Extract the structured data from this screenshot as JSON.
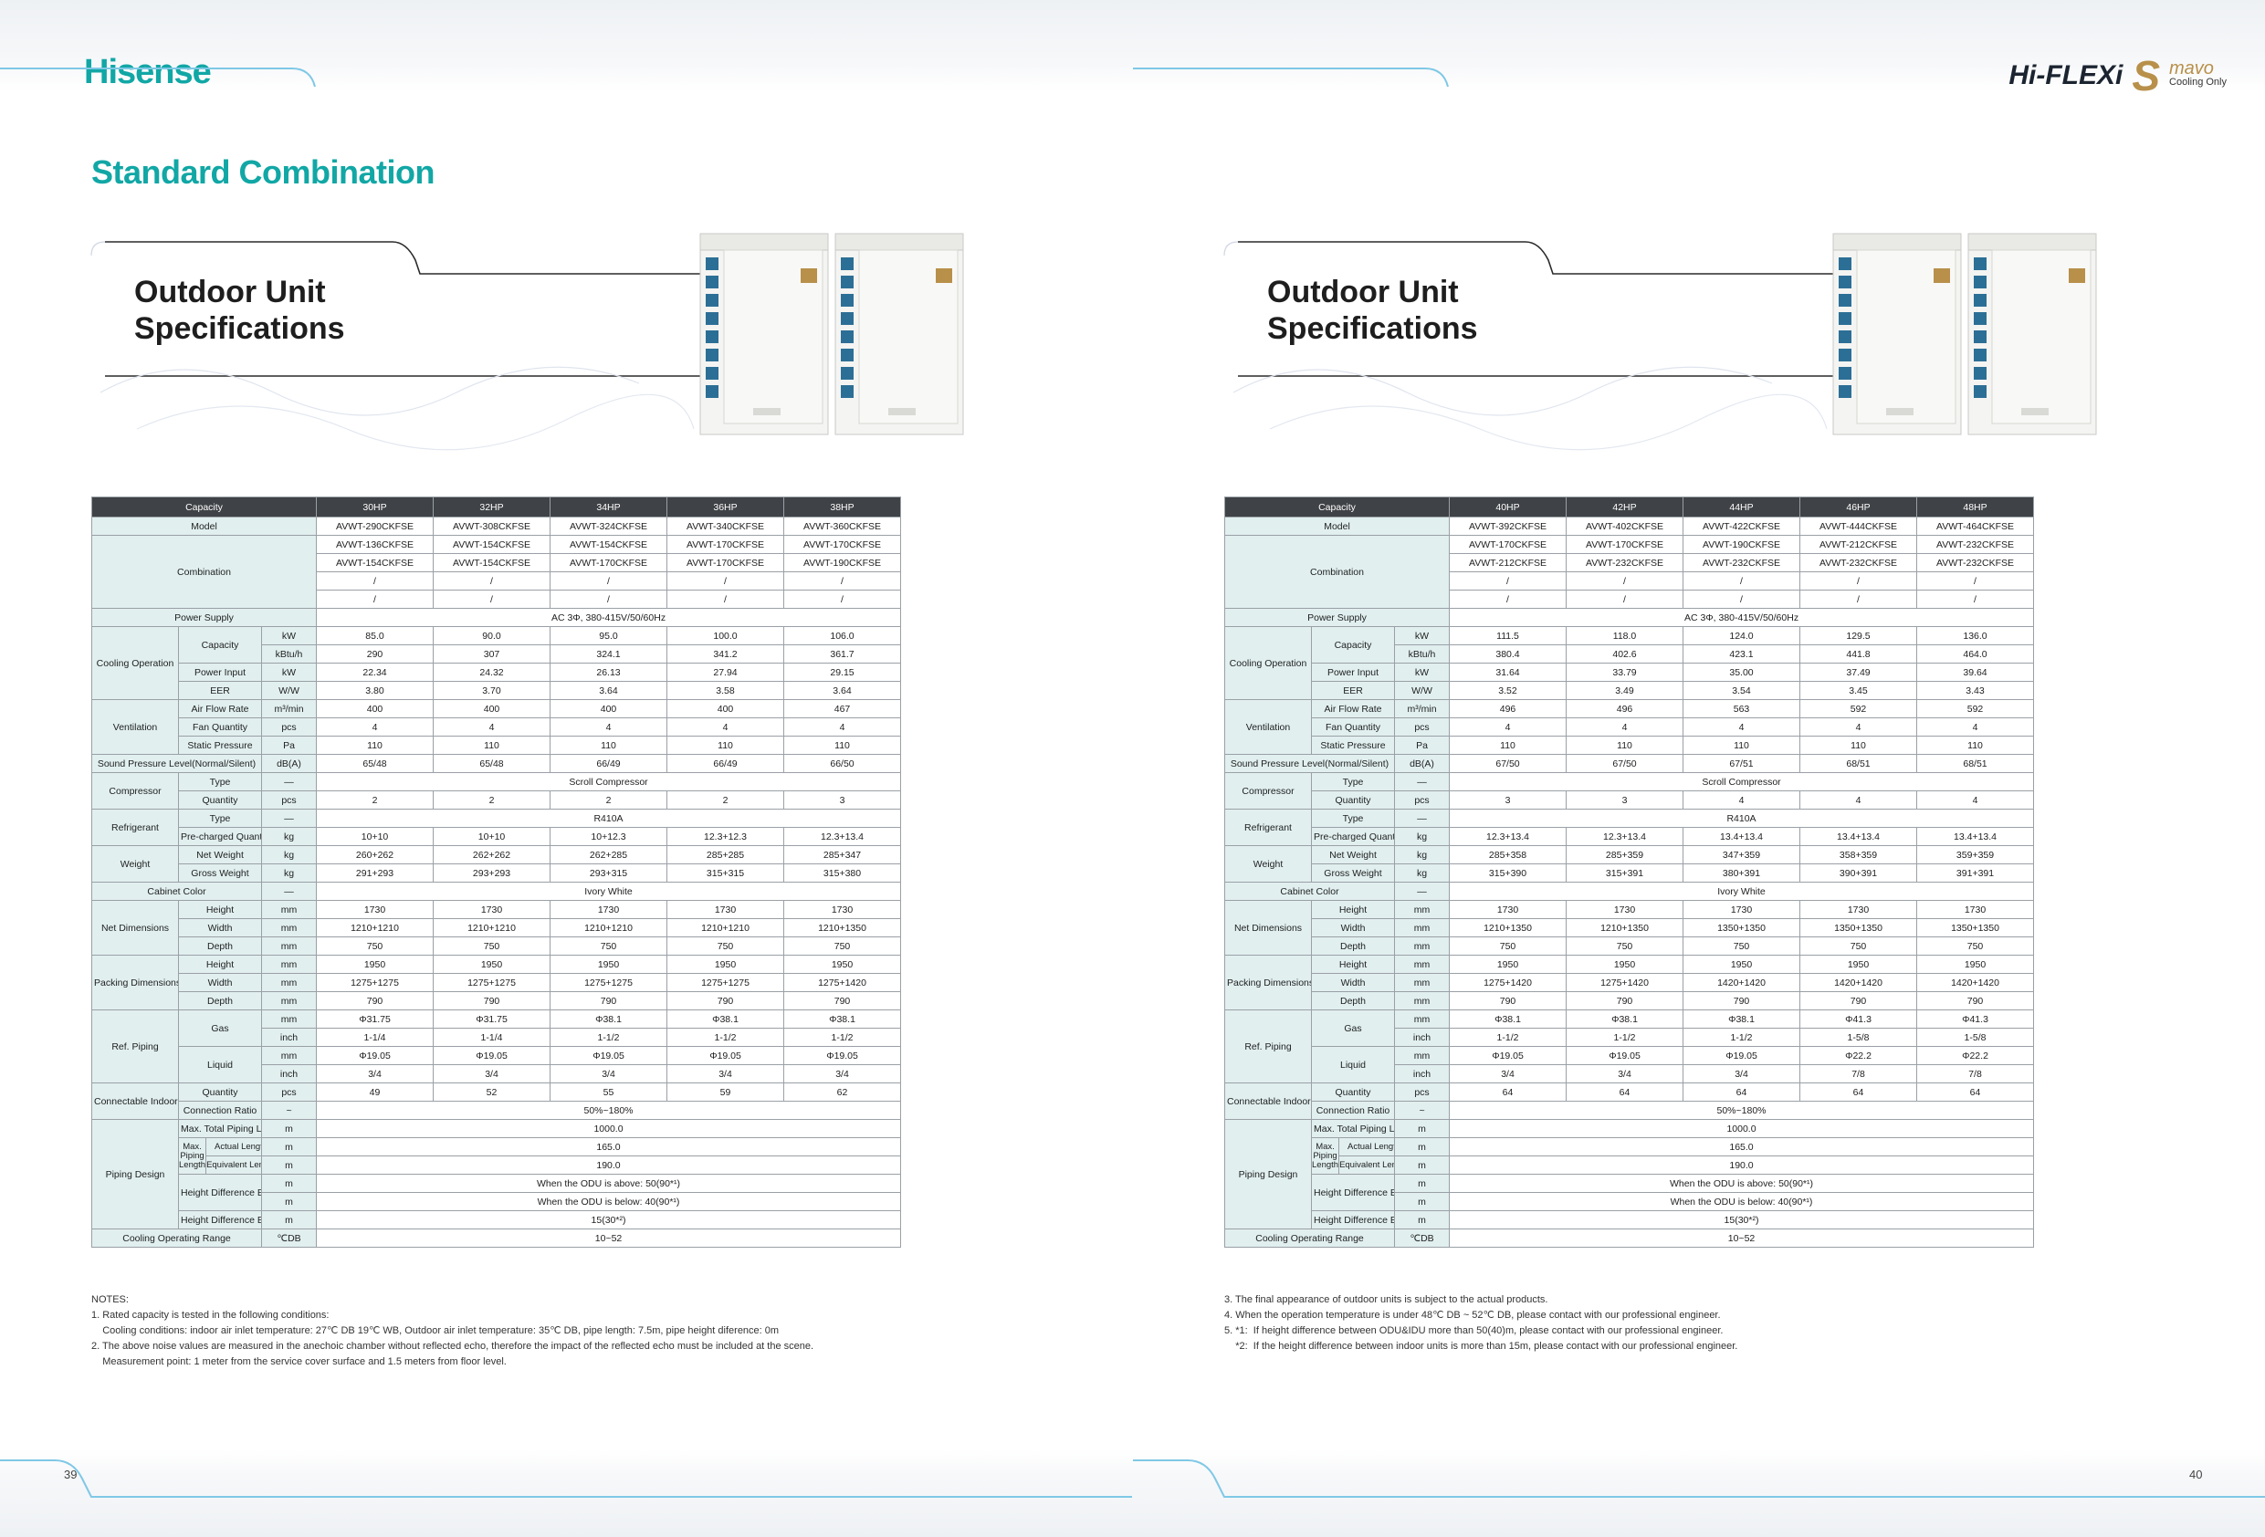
{
  "header": {
    "brand": "Hisense",
    "hiflexi": "Hi-FLEXi",
    "hiflexi_s": "S",
    "mavo": "mavo",
    "mavo_sub": "Cooling Only",
    "section_title": "Standard Combination"
  },
  "pages": [
    {
      "page_number": "39",
      "outdoor_title_1": "Outdoor Unit",
      "outdoor_title_2": "Specifications",
      "capacities": [
        "30HP",
        "32HP",
        "34HP",
        "36HP",
        "38HP"
      ],
      "notes_title": "NOTES:",
      "notes": [
        "1. Rated capacity is tested in the following conditions:",
        "    Cooling conditions: indoor air inlet temperature: 27℃ DB 19℃ WB, Outdoor air inlet temperature: 35℃ DB, pipe length: 7.5m, pipe height diference: 0m",
        "2. The above noise values are measured in the anechoic chamber without reflected echo, therefore the impact of the reflected echo must be included at the scene.",
        "    Measurement point: 1 meter from the service cover surface and 1.5 meters from floor level."
      ],
      "rows": {
        "model": [
          "AVWT-290CKFSE",
          "AVWT-308CKFSE",
          "AVWT-324CKFSE",
          "AVWT-340CKFSE",
          "AVWT-360CKFSE"
        ],
        "combo1": [
          "AVWT-136CKFSE",
          "AVWT-154CKFSE",
          "AVWT-154CKFSE",
          "AVWT-170CKFSE",
          "AVWT-170CKFSE"
        ],
        "combo2": [
          "AVWT-154CKFSE",
          "AVWT-154CKFSE",
          "AVWT-170CKFSE",
          "AVWT-170CKFSE",
          "AVWT-190CKFSE"
        ],
        "combo3": [
          "/",
          "/",
          "/",
          "/",
          "/"
        ],
        "combo4": [
          "/",
          "/",
          "/",
          "/",
          "/"
        ],
        "power_supply": "AC 3Φ, 380-415V/50/60Hz",
        "cap_kw": [
          "85.0",
          "90.0",
          "95.0",
          "100.0",
          "106.0"
        ],
        "cap_kbtu": [
          "290",
          "307",
          "324.1",
          "341.2",
          "361.7"
        ],
        "power_input": [
          "22.34",
          "24.32",
          "26.13",
          "27.94",
          "29.15"
        ],
        "eer": [
          "3.80",
          "3.70",
          "3.64",
          "3.58",
          "3.64"
        ],
        "air_flow": [
          "400",
          "400",
          "400",
          "400",
          "467"
        ],
        "fan_qty": [
          "4",
          "4",
          "4",
          "4",
          "4"
        ],
        "static_pressure": [
          "110",
          "110",
          "110",
          "110",
          "110"
        ],
        "sound": [
          "65/48",
          "65/48",
          "66/49",
          "66/49",
          "66/50"
        ],
        "compressor_type": "Scroll Compressor",
        "compressor_qty": [
          "2",
          "2",
          "2",
          "2",
          "3"
        ],
        "refrigerant_type": "R410A",
        "precharged": [
          "10+10",
          "10+10",
          "10+12.3",
          "12.3+12.3",
          "12.3+13.4"
        ],
        "net_weight": [
          "260+262",
          "262+262",
          "262+285",
          "285+285",
          "285+347"
        ],
        "gross_weight": [
          "291+293",
          "293+293",
          "293+315",
          "315+315",
          "315+380"
        ],
        "cabinet_color": "Ivory White",
        "net_height": [
          "1730",
          "1730",
          "1730",
          "1730",
          "1730"
        ],
        "net_width": [
          "1210+1210",
          "1210+1210",
          "1210+1210",
          "1210+1210",
          "1210+1350"
        ],
        "net_depth": [
          "750",
          "750",
          "750",
          "750",
          "750"
        ],
        "pack_height": [
          "1950",
          "1950",
          "1950",
          "1950",
          "1950"
        ],
        "pack_width": [
          "1275+1275",
          "1275+1275",
          "1275+1275",
          "1275+1275",
          "1275+1420"
        ],
        "pack_depth": [
          "790",
          "790",
          "790",
          "790",
          "790"
        ],
        "gas_mm": [
          "Φ31.75",
          "Φ31.75",
          "Φ38.1",
          "Φ38.1",
          "Φ38.1"
        ],
        "gas_inch": [
          "1-1/4",
          "1-1/4",
          "1-1/2",
          "1-1/2",
          "1-1/2"
        ],
        "liquid_mm": [
          "Φ19.05",
          "Φ19.05",
          "Φ19.05",
          "Φ19.05",
          "Φ19.05"
        ],
        "liquid_inch": [
          "3/4",
          "3/4",
          "3/4",
          "3/4",
          "3/4"
        ],
        "idu_qty": [
          "49",
          "52",
          "55",
          "59",
          "62"
        ],
        "connection_ratio": "50%~180%",
        "max_total_piping": "1000.0",
        "actual_length": "165.0",
        "equivalent_length": "190.0",
        "odu_above": "When the ODU is above: 50(90*¹)",
        "odu_below": "When the ODU is below: 40(90*¹)",
        "height_idus": "15(30*²)",
        "cooling_range": "10~52"
      }
    },
    {
      "page_number": "40",
      "outdoor_title_1": "Outdoor Unit",
      "outdoor_title_2": "Specifications",
      "capacities": [
        "40HP",
        "42HP",
        "44HP",
        "46HP",
        "48HP"
      ],
      "notes_title": "",
      "notes": [
        "3. The final appearance of outdoor units is subject to the actual products.",
        "4. When the operation temperature is under 48℃ DB ~ 52℃ DB, please contact with our professional engineer.",
        "5. *1:  If height difference between ODU&IDU more than 50(40)m, please contact with our professional engineer.",
        "    *2:  If the height difference between indoor units is more than 15m, please contact with our professional engineer."
      ],
      "rows": {
        "model": [
          "AVWT-392CKFSE",
          "AVWT-402CKFSE",
          "AVWT-422CKFSE",
          "AVWT-444CKFSE",
          "AVWT-464CKFSE"
        ],
        "combo1": [
          "AVWT-170CKFSE",
          "AVWT-170CKFSE",
          "AVWT-190CKFSE",
          "AVWT-212CKFSE",
          "AVWT-232CKFSE"
        ],
        "combo2": [
          "AVWT-212CKFSE",
          "AVWT-232CKFSE",
          "AVWT-232CKFSE",
          "AVWT-232CKFSE",
          "AVWT-232CKFSE"
        ],
        "combo3": [
          "/",
          "/",
          "/",
          "/",
          "/"
        ],
        "combo4": [
          "/",
          "/",
          "/",
          "/",
          "/"
        ],
        "power_supply": "AC 3Φ, 380-415V/50/60Hz",
        "cap_kw": [
          "111.5",
          "118.0",
          "124.0",
          "129.5",
          "136.0"
        ],
        "cap_kbtu": [
          "380.4",
          "402.6",
          "423.1",
          "441.8",
          "464.0"
        ],
        "power_input": [
          "31.64",
          "33.79",
          "35.00",
          "37.49",
          "39.64"
        ],
        "eer": [
          "3.52",
          "3.49",
          "3.54",
          "3.45",
          "3.43"
        ],
        "air_flow": [
          "496",
          "496",
          "563",
          "592",
          "592"
        ],
        "fan_qty": [
          "4",
          "4",
          "4",
          "4",
          "4"
        ],
        "static_pressure": [
          "110",
          "110",
          "110",
          "110",
          "110"
        ],
        "sound": [
          "67/50",
          "67/50",
          "67/51",
          "68/51",
          "68/51"
        ],
        "compressor_type": "Scroll Compressor",
        "compressor_qty": [
          "3",
          "3",
          "4",
          "4",
          "4"
        ],
        "refrigerant_type": "R410A",
        "precharged": [
          "12.3+13.4",
          "12.3+13.4",
          "13.4+13.4",
          "13.4+13.4",
          "13.4+13.4"
        ],
        "net_weight": [
          "285+358",
          "285+359",
          "347+359",
          "358+359",
          "359+359"
        ],
        "gross_weight": [
          "315+390",
          "315+391",
          "380+391",
          "390+391",
          "391+391"
        ],
        "cabinet_color": "Ivory White",
        "net_height": [
          "1730",
          "1730",
          "1730",
          "1730",
          "1730"
        ],
        "net_width": [
          "1210+1350",
          "1210+1350",
          "1350+1350",
          "1350+1350",
          "1350+1350"
        ],
        "net_depth": [
          "750",
          "750",
          "750",
          "750",
          "750"
        ],
        "pack_height": [
          "1950",
          "1950",
          "1950",
          "1950",
          "1950"
        ],
        "pack_width": [
          "1275+1420",
          "1275+1420",
          "1420+1420",
          "1420+1420",
          "1420+1420"
        ],
        "pack_depth": [
          "790",
          "790",
          "790",
          "790",
          "790"
        ],
        "gas_mm": [
          "Φ38.1",
          "Φ38.1",
          "Φ38.1",
          "Φ41.3",
          "Φ41.3"
        ],
        "gas_inch": [
          "1-1/2",
          "1-1/2",
          "1-1/2",
          "1-5/8",
          "1-5/8"
        ],
        "liquid_mm": [
          "Φ19.05",
          "Φ19.05",
          "Φ19.05",
          "Φ22.2",
          "Φ22.2"
        ],
        "liquid_inch": [
          "3/4",
          "3/4",
          "3/4",
          "7/8",
          "7/8"
        ],
        "idu_qty": [
          "64",
          "64",
          "64",
          "64",
          "64"
        ],
        "connection_ratio": "50%~180%",
        "max_total_piping": "1000.0",
        "actual_length": "165.0",
        "equivalent_length": "190.0",
        "odu_above": "When the ODU is above: 50(90*¹)",
        "odu_below": "When the ODU is below: 40(90*¹)",
        "height_idus": "15(30*²)",
        "cooling_range": "10~52"
      }
    }
  ],
  "labels": {
    "capacity": "Capacity",
    "model": "Model",
    "combination": "Combination",
    "power_supply": "Power Supply",
    "cooling_operation": "Cooling Operation",
    "power_input": "Power Input",
    "eer": "EER",
    "ventilation": "Ventilation",
    "air_flow": "Air Flow Rate",
    "fan_qty": "Fan Quantity",
    "static_pressure": "Static Pressure",
    "sound": "Sound Pressure Level(Normal/Silent)",
    "compressor": "Compressor",
    "type": "Type",
    "quantity": "Quantity",
    "refrigerant": "Refrigerant",
    "precharged": "Pre-charged Quantity",
    "weight": "Weight",
    "net_weight": "Net Weight",
    "gross_weight": "Gross Weight",
    "cabinet_color": "Cabinet Color",
    "net_dimensions": "Net Dimensions",
    "packing_dimensions": "Packing Dimensions",
    "height": "Height",
    "width": "Width",
    "depth": "Depth",
    "ref_piping": "Ref. Piping",
    "gas": "Gas",
    "liquid": "Liquid",
    "connectable": "Connectable Indoor Units",
    "connection_ratio": "Connection Ratio",
    "piping_design": "Piping Design",
    "max_total_piping": "Max. Total Piping Length",
    "max_piping_length": "Max. Piping Length",
    "actual_length": "Actual Length",
    "equivalent_length": "Equivalent Length",
    "height_diff_odu_idu": "Height Difference Between ODU and IDU",
    "height_diff_idus": "Height Difference Between  IDUs",
    "cooling_range": "Cooling Operating Range"
  },
  "units": {
    "kw": "kW",
    "kbtu": "kBtu/h",
    "ww": "W/W",
    "m3min": "m³/min",
    "pcs": "pcs",
    "pa": "Pa",
    "dba": "dB(A)",
    "dash": "—",
    "kg": "kg",
    "mm": "mm",
    "inch": "inch",
    "tilde": "~",
    "m": "m",
    "cdb": "℃DB"
  },
  "colors": {
    "brand_teal": "#11a7a5",
    "header_dark": "#3f4246",
    "label_bg": "#e1efef",
    "unit_white": "#f4f4f2",
    "panel_blue": "#2c6f96"
  }
}
